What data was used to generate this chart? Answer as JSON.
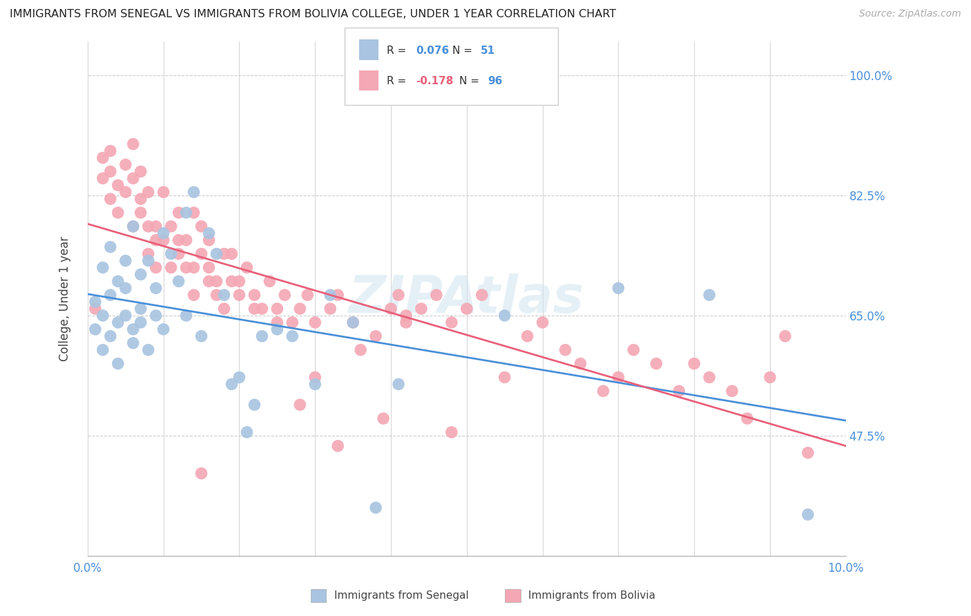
{
  "title": "IMMIGRANTS FROM SENEGAL VS IMMIGRANTS FROM BOLIVIA COLLEGE, UNDER 1 YEAR CORRELATION CHART",
  "source": "Source: ZipAtlas.com",
  "ylabel": "College, Under 1 year",
  "xlim": [
    0.0,
    0.1
  ],
  "ylim": [
    0.3,
    1.05
  ],
  "ytick_labels": [
    "100.0%",
    "82.5%",
    "65.0%",
    "47.5%"
  ],
  "ytick_vals": [
    1.0,
    0.825,
    0.65,
    0.475
  ],
  "legend_label_blue": "Immigrants from Senegal",
  "legend_label_pink": "Immigrants from Bolivia",
  "senegal_color": "#a8c4e0",
  "bolivia_color": "#f4a7b4",
  "trendline_blue_color": "#4a90d9",
  "trendline_pink_color": "#e8607a",
  "background_color": "#ffffff",
  "senegal_x": [
    0.001,
    0.001,
    0.002,
    0.002,
    0.002,
    0.003,
    0.003,
    0.003,
    0.004,
    0.004,
    0.004,
    0.005,
    0.005,
    0.005,
    0.006,
    0.006,
    0.006,
    0.007,
    0.007,
    0.007,
    0.008,
    0.008,
    0.009,
    0.009,
    0.01,
    0.01,
    0.011,
    0.012,
    0.013,
    0.013,
    0.014,
    0.015,
    0.016,
    0.017,
    0.018,
    0.019,
    0.02,
    0.021,
    0.022,
    0.023,
    0.025,
    0.027,
    0.03,
    0.032,
    0.035,
    0.038,
    0.041,
    0.055,
    0.07,
    0.082,
    0.095
  ],
  "senegal_y": [
    0.63,
    0.67,
    0.72,
    0.65,
    0.6,
    0.75,
    0.68,
    0.62,
    0.7,
    0.64,
    0.58,
    0.73,
    0.65,
    0.69,
    0.63,
    0.78,
    0.61,
    0.66,
    0.71,
    0.64,
    0.6,
    0.73,
    0.65,
    0.69,
    0.63,
    0.77,
    0.74,
    0.7,
    0.65,
    0.8,
    0.83,
    0.62,
    0.77,
    0.74,
    0.68,
    0.55,
    0.56,
    0.48,
    0.52,
    0.62,
    0.63,
    0.62,
    0.55,
    0.68,
    0.64,
    0.37,
    0.55,
    0.65,
    0.69,
    0.68,
    0.36
  ],
  "bolivia_x": [
    0.001,
    0.002,
    0.002,
    0.003,
    0.003,
    0.003,
    0.004,
    0.004,
    0.005,
    0.005,
    0.006,
    0.006,
    0.006,
    0.007,
    0.007,
    0.007,
    0.008,
    0.008,
    0.008,
    0.009,
    0.009,
    0.009,
    0.01,
    0.01,
    0.011,
    0.011,
    0.012,
    0.012,
    0.012,
    0.013,
    0.013,
    0.014,
    0.014,
    0.014,
    0.015,
    0.015,
    0.016,
    0.016,
    0.016,
    0.017,
    0.017,
    0.018,
    0.018,
    0.019,
    0.019,
    0.02,
    0.02,
    0.021,
    0.022,
    0.022,
    0.023,
    0.024,
    0.025,
    0.025,
    0.026,
    0.027,
    0.028,
    0.029,
    0.03,
    0.03,
    0.032,
    0.033,
    0.035,
    0.036,
    0.038,
    0.04,
    0.041,
    0.042,
    0.044,
    0.046,
    0.048,
    0.05,
    0.052,
    0.055,
    0.058,
    0.06,
    0.063,
    0.065,
    0.068,
    0.07,
    0.072,
    0.075,
    0.078,
    0.08,
    0.082,
    0.085,
    0.087,
    0.09,
    0.092,
    0.095,
    0.028,
    0.033,
    0.039,
    0.015,
    0.042,
    0.048
  ],
  "bolivia_y": [
    0.66,
    0.85,
    0.88,
    0.82,
    0.86,
    0.89,
    0.84,
    0.8,
    0.83,
    0.87,
    0.78,
    0.85,
    0.9,
    0.8,
    0.82,
    0.86,
    0.74,
    0.78,
    0.83,
    0.76,
    0.72,
    0.78,
    0.76,
    0.83,
    0.72,
    0.78,
    0.76,
    0.8,
    0.74,
    0.72,
    0.76,
    0.8,
    0.72,
    0.68,
    0.74,
    0.78,
    0.7,
    0.76,
    0.72,
    0.68,
    0.7,
    0.74,
    0.66,
    0.7,
    0.74,
    0.68,
    0.7,
    0.72,
    0.66,
    0.68,
    0.66,
    0.7,
    0.64,
    0.66,
    0.68,
    0.64,
    0.66,
    0.68,
    0.64,
    0.56,
    0.66,
    0.68,
    0.64,
    0.6,
    0.62,
    0.66,
    0.68,
    0.64,
    0.66,
    0.68,
    0.64,
    0.66,
    0.68,
    0.56,
    0.62,
    0.64,
    0.6,
    0.58,
    0.54,
    0.56,
    0.6,
    0.58,
    0.54,
    0.58,
    0.56,
    0.54,
    0.5,
    0.56,
    0.62,
    0.45,
    0.52,
    0.46,
    0.5,
    0.42,
    0.65,
    0.48
  ]
}
